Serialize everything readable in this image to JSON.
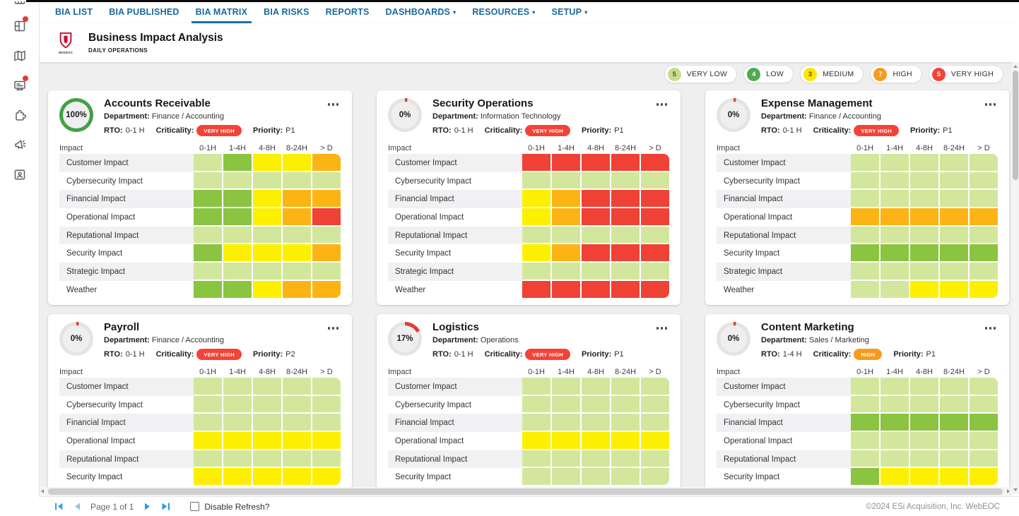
{
  "sidebar": {
    "items": [
      {
        "icon": "clipped-top-icon",
        "badge": false
      },
      {
        "icon": "layout-panels-icon",
        "badge": true
      },
      {
        "icon": "map-icon",
        "badge": false
      },
      {
        "icon": "display-board-icon",
        "badge": true
      },
      {
        "icon": "puzzle-icon",
        "badge": false
      },
      {
        "icon": "megaphone-icon",
        "badge": false
      },
      {
        "icon": "contact-badge-icon",
        "badge": false
      }
    ]
  },
  "nav": {
    "tabs": [
      {
        "label": "BIA LIST",
        "active": false,
        "caret": false
      },
      {
        "label": "BIA PUBLISHED",
        "active": false,
        "caret": false
      },
      {
        "label": "BIA MATRIX",
        "active": true,
        "caret": false
      },
      {
        "label": "BIA RISKS",
        "active": false,
        "caret": false
      },
      {
        "label": "REPORTS",
        "active": false,
        "caret": false
      },
      {
        "label": "DASHBOARDS",
        "active": false,
        "caret": true
      },
      {
        "label": "RESOURCES",
        "active": false,
        "caret": true
      },
      {
        "label": "SETUP",
        "active": false,
        "caret": true
      }
    ]
  },
  "header": {
    "title": "Business Impact Analysis",
    "subtitle": "DAILY OPERATIONS",
    "logo_text": "WebEOC"
  },
  "legend": {
    "items": [
      {
        "count": "5",
        "label": "VERY LOW",
        "color": "#c7dc8e",
        "count_color": "#4c5b2a"
      },
      {
        "count": "4",
        "label": "LOW",
        "color": "#4cac50",
        "count_color": "#ffffff"
      },
      {
        "count": "3",
        "label": "MEDIUM",
        "color": "#fde701",
        "count_color": "#5b5200"
      },
      {
        "count": "7",
        "label": "HIGH",
        "color": "#f89b1c",
        "count_color": "#ffffff"
      },
      {
        "count": "5",
        "label": "VERY HIGH",
        "color": "#f44336",
        "count_color": "#ffffff"
      }
    ]
  },
  "levels": {
    "VL": "#d2e79c",
    "L": "#8ac441",
    "M": "#fcf000",
    "H": "#fcb415",
    "VH": "#ef4136"
  },
  "matrix": {
    "impact_header": "Impact",
    "columns": [
      "0-1H",
      "1-4H",
      "4-8H",
      "8-24H",
      "> D"
    ]
  },
  "card_labels": {
    "department": "Department:",
    "rto": "RTO:",
    "criticality": "Criticality:",
    "priority": "Priority:"
  },
  "cards": [
    {
      "title": "Accounts Receivable",
      "percent": "100%",
      "ring": {
        "value": 100,
        "color": "#43a047"
      },
      "department": "Finance / Accounting",
      "rto": "0-1 H",
      "criticality": "VERY HIGH",
      "criticality_color": "#f44336",
      "priority": "P1",
      "rows": [
        {
          "label": "Customer Impact",
          "cells": [
            "VL",
            "L",
            "M",
            "M",
            "H"
          ]
        },
        {
          "label": "Cybersecurity Impact",
          "cells": [
            "VL",
            "VL",
            "VL",
            "VL",
            "VL"
          ]
        },
        {
          "label": "Financial Impact",
          "cells": [
            "L",
            "L",
            "M",
            "H",
            "H"
          ]
        },
        {
          "label": "Operational Impact",
          "cells": [
            "L",
            "L",
            "M",
            "H",
            "VH"
          ]
        },
        {
          "label": "Reputational Impact",
          "cells": [
            "VL",
            "VL",
            "VL",
            "VL",
            "VL"
          ]
        },
        {
          "label": "Security Impact",
          "cells": [
            "L",
            "M",
            "M",
            "M",
            "H"
          ]
        },
        {
          "label": "Strategic Impact",
          "cells": [
            "VL",
            "VL",
            "VL",
            "VL",
            "VL"
          ]
        },
        {
          "label": "Weather",
          "cells": [
            "L",
            "L",
            "M",
            "H",
            "H"
          ]
        }
      ]
    },
    {
      "title": "Security Operations",
      "percent": "0%",
      "ring": {
        "value": 0,
        "color": "#e53935"
      },
      "department": "Information Technology",
      "rto": "0-1 H",
      "criticality": "VERY HIGH",
      "criticality_color": "#f44336",
      "priority": "P1",
      "rows": [
        {
          "label": "Customer Impact",
          "cells": [
            "VH",
            "VH",
            "VH",
            "VH",
            "VH"
          ]
        },
        {
          "label": "Cybersecurity Impact",
          "cells": [
            "VL",
            "VL",
            "VL",
            "VL",
            "VL"
          ]
        },
        {
          "label": "Financial Impact",
          "cells": [
            "M",
            "H",
            "VH",
            "VH",
            "VH"
          ]
        },
        {
          "label": "Operational Impact",
          "cells": [
            "M",
            "H",
            "VH",
            "VH",
            "VH"
          ]
        },
        {
          "label": "Reputational Impact",
          "cells": [
            "VL",
            "VL",
            "VL",
            "VL",
            "VL"
          ]
        },
        {
          "label": "Security Impact",
          "cells": [
            "M",
            "H",
            "VH",
            "VH",
            "VH"
          ]
        },
        {
          "label": "Strategic Impact",
          "cells": [
            "VL",
            "VL",
            "VL",
            "VL",
            "VL"
          ]
        },
        {
          "label": "Weather",
          "cells": [
            "VH",
            "VH",
            "VH",
            "VH",
            "VH"
          ]
        }
      ]
    },
    {
      "title": "Expense Management",
      "percent": "0%",
      "ring": {
        "value": 0,
        "color": "#e53935"
      },
      "department": "Finance / Accounting",
      "rto": "0-1 H",
      "criticality": "VERY HIGH",
      "criticality_color": "#f44336",
      "priority": "P1",
      "rows": [
        {
          "label": "Customer Impact",
          "cells": [
            "VL",
            "VL",
            "VL",
            "VL",
            "VL"
          ]
        },
        {
          "label": "Cybersecurity Impact",
          "cells": [
            "VL",
            "VL",
            "VL",
            "VL",
            "VL"
          ]
        },
        {
          "label": "Financial Impact",
          "cells": [
            "VL",
            "VL",
            "VL",
            "VL",
            "VL"
          ]
        },
        {
          "label": "Operational Impact",
          "cells": [
            "H",
            "H",
            "H",
            "H",
            "H"
          ]
        },
        {
          "label": "Reputational Impact",
          "cells": [
            "VL",
            "VL",
            "VL",
            "VL",
            "VL"
          ]
        },
        {
          "label": "Security Impact",
          "cells": [
            "L",
            "L",
            "L",
            "L",
            "L"
          ]
        },
        {
          "label": "Strategic Impact",
          "cells": [
            "VL",
            "VL",
            "VL",
            "VL",
            "VL"
          ]
        },
        {
          "label": "Weather",
          "cells": [
            "VL",
            "VL",
            "M",
            "M",
            "M"
          ]
        }
      ]
    },
    {
      "title": "Payroll",
      "percent": "0%",
      "ring": {
        "value": 0,
        "color": "#e53935"
      },
      "department": "Finance / Accounting",
      "rto": "0-1 H",
      "criticality": "VERY HIGH",
      "criticality_color": "#f44336",
      "priority": "P2",
      "rows": [
        {
          "label": "Customer Impact",
          "cells": [
            "VL",
            "VL",
            "VL",
            "VL",
            "VL"
          ]
        },
        {
          "label": "Cybersecurity Impact",
          "cells": [
            "VL",
            "VL",
            "VL",
            "VL",
            "VL"
          ]
        },
        {
          "label": "Financial Impact",
          "cells": [
            "VL",
            "VL",
            "VL",
            "VL",
            "VL"
          ]
        },
        {
          "label": "Operational Impact",
          "cells": [
            "M",
            "M",
            "M",
            "M",
            "M"
          ]
        },
        {
          "label": "Reputational Impact",
          "cells": [
            "VL",
            "VL",
            "VL",
            "VL",
            "VL"
          ]
        },
        {
          "label": "Security Impact",
          "cells": [
            "M",
            "M",
            "M",
            "M",
            "M"
          ]
        }
      ]
    },
    {
      "title": "Logistics",
      "percent": "17%",
      "ring": {
        "value": 17,
        "color": "#e53935"
      },
      "department": "Operations",
      "rto": "0-1 H",
      "criticality": "VERY HIGH",
      "criticality_color": "#f44336",
      "priority": "P1",
      "rows": [
        {
          "label": "Customer Impact",
          "cells": [
            "VL",
            "VL",
            "VL",
            "VL",
            "VL"
          ]
        },
        {
          "label": "Cybersecurity Impact",
          "cells": [
            "VL",
            "VL",
            "VL",
            "VL",
            "VL"
          ]
        },
        {
          "label": "Financial Impact",
          "cells": [
            "VL",
            "VL",
            "VL",
            "VL",
            "VL"
          ]
        },
        {
          "label": "Operational Impact",
          "cells": [
            "M",
            "M",
            "M",
            "M",
            "M"
          ]
        },
        {
          "label": "Reputational Impact",
          "cells": [
            "VL",
            "VL",
            "VL",
            "VL",
            "VL"
          ]
        },
        {
          "label": "Security Impact",
          "cells": [
            "VL",
            "VL",
            "VL",
            "VL",
            "VL"
          ]
        }
      ]
    },
    {
      "title": "Content Marketing",
      "percent": "0%",
      "ring": {
        "value": 0,
        "color": "#e53935"
      },
      "department": "Sales / Marketing",
      "rto": "1-4 H",
      "criticality": "HIGH",
      "criticality_color": "#f89b1c",
      "priority": "P1",
      "rows": [
        {
          "label": "Customer Impact",
          "cells": [
            "VL",
            "VL",
            "VL",
            "VL",
            "VL"
          ]
        },
        {
          "label": "Cybersecurity Impact",
          "cells": [
            "VL",
            "VL",
            "VL",
            "VL",
            "VL"
          ]
        },
        {
          "label": "Financial Impact",
          "cells": [
            "L",
            "L",
            "L",
            "L",
            "L"
          ]
        },
        {
          "label": "Operational Impact",
          "cells": [
            "VL",
            "VL",
            "VL",
            "VL",
            "VL"
          ]
        },
        {
          "label": "Reputational Impact",
          "cells": [
            "VL",
            "VL",
            "VL",
            "VL",
            "VL"
          ]
        },
        {
          "label": "Security Impact",
          "cells": [
            "L",
            "M",
            "M",
            "M",
            "M"
          ]
        }
      ]
    }
  ],
  "footer": {
    "page_text": "Page 1 of 1",
    "disable_refresh_label": "Disable Refresh?",
    "copyright": "©2024 ESi Acquisition, Inc. WebEOC"
  }
}
